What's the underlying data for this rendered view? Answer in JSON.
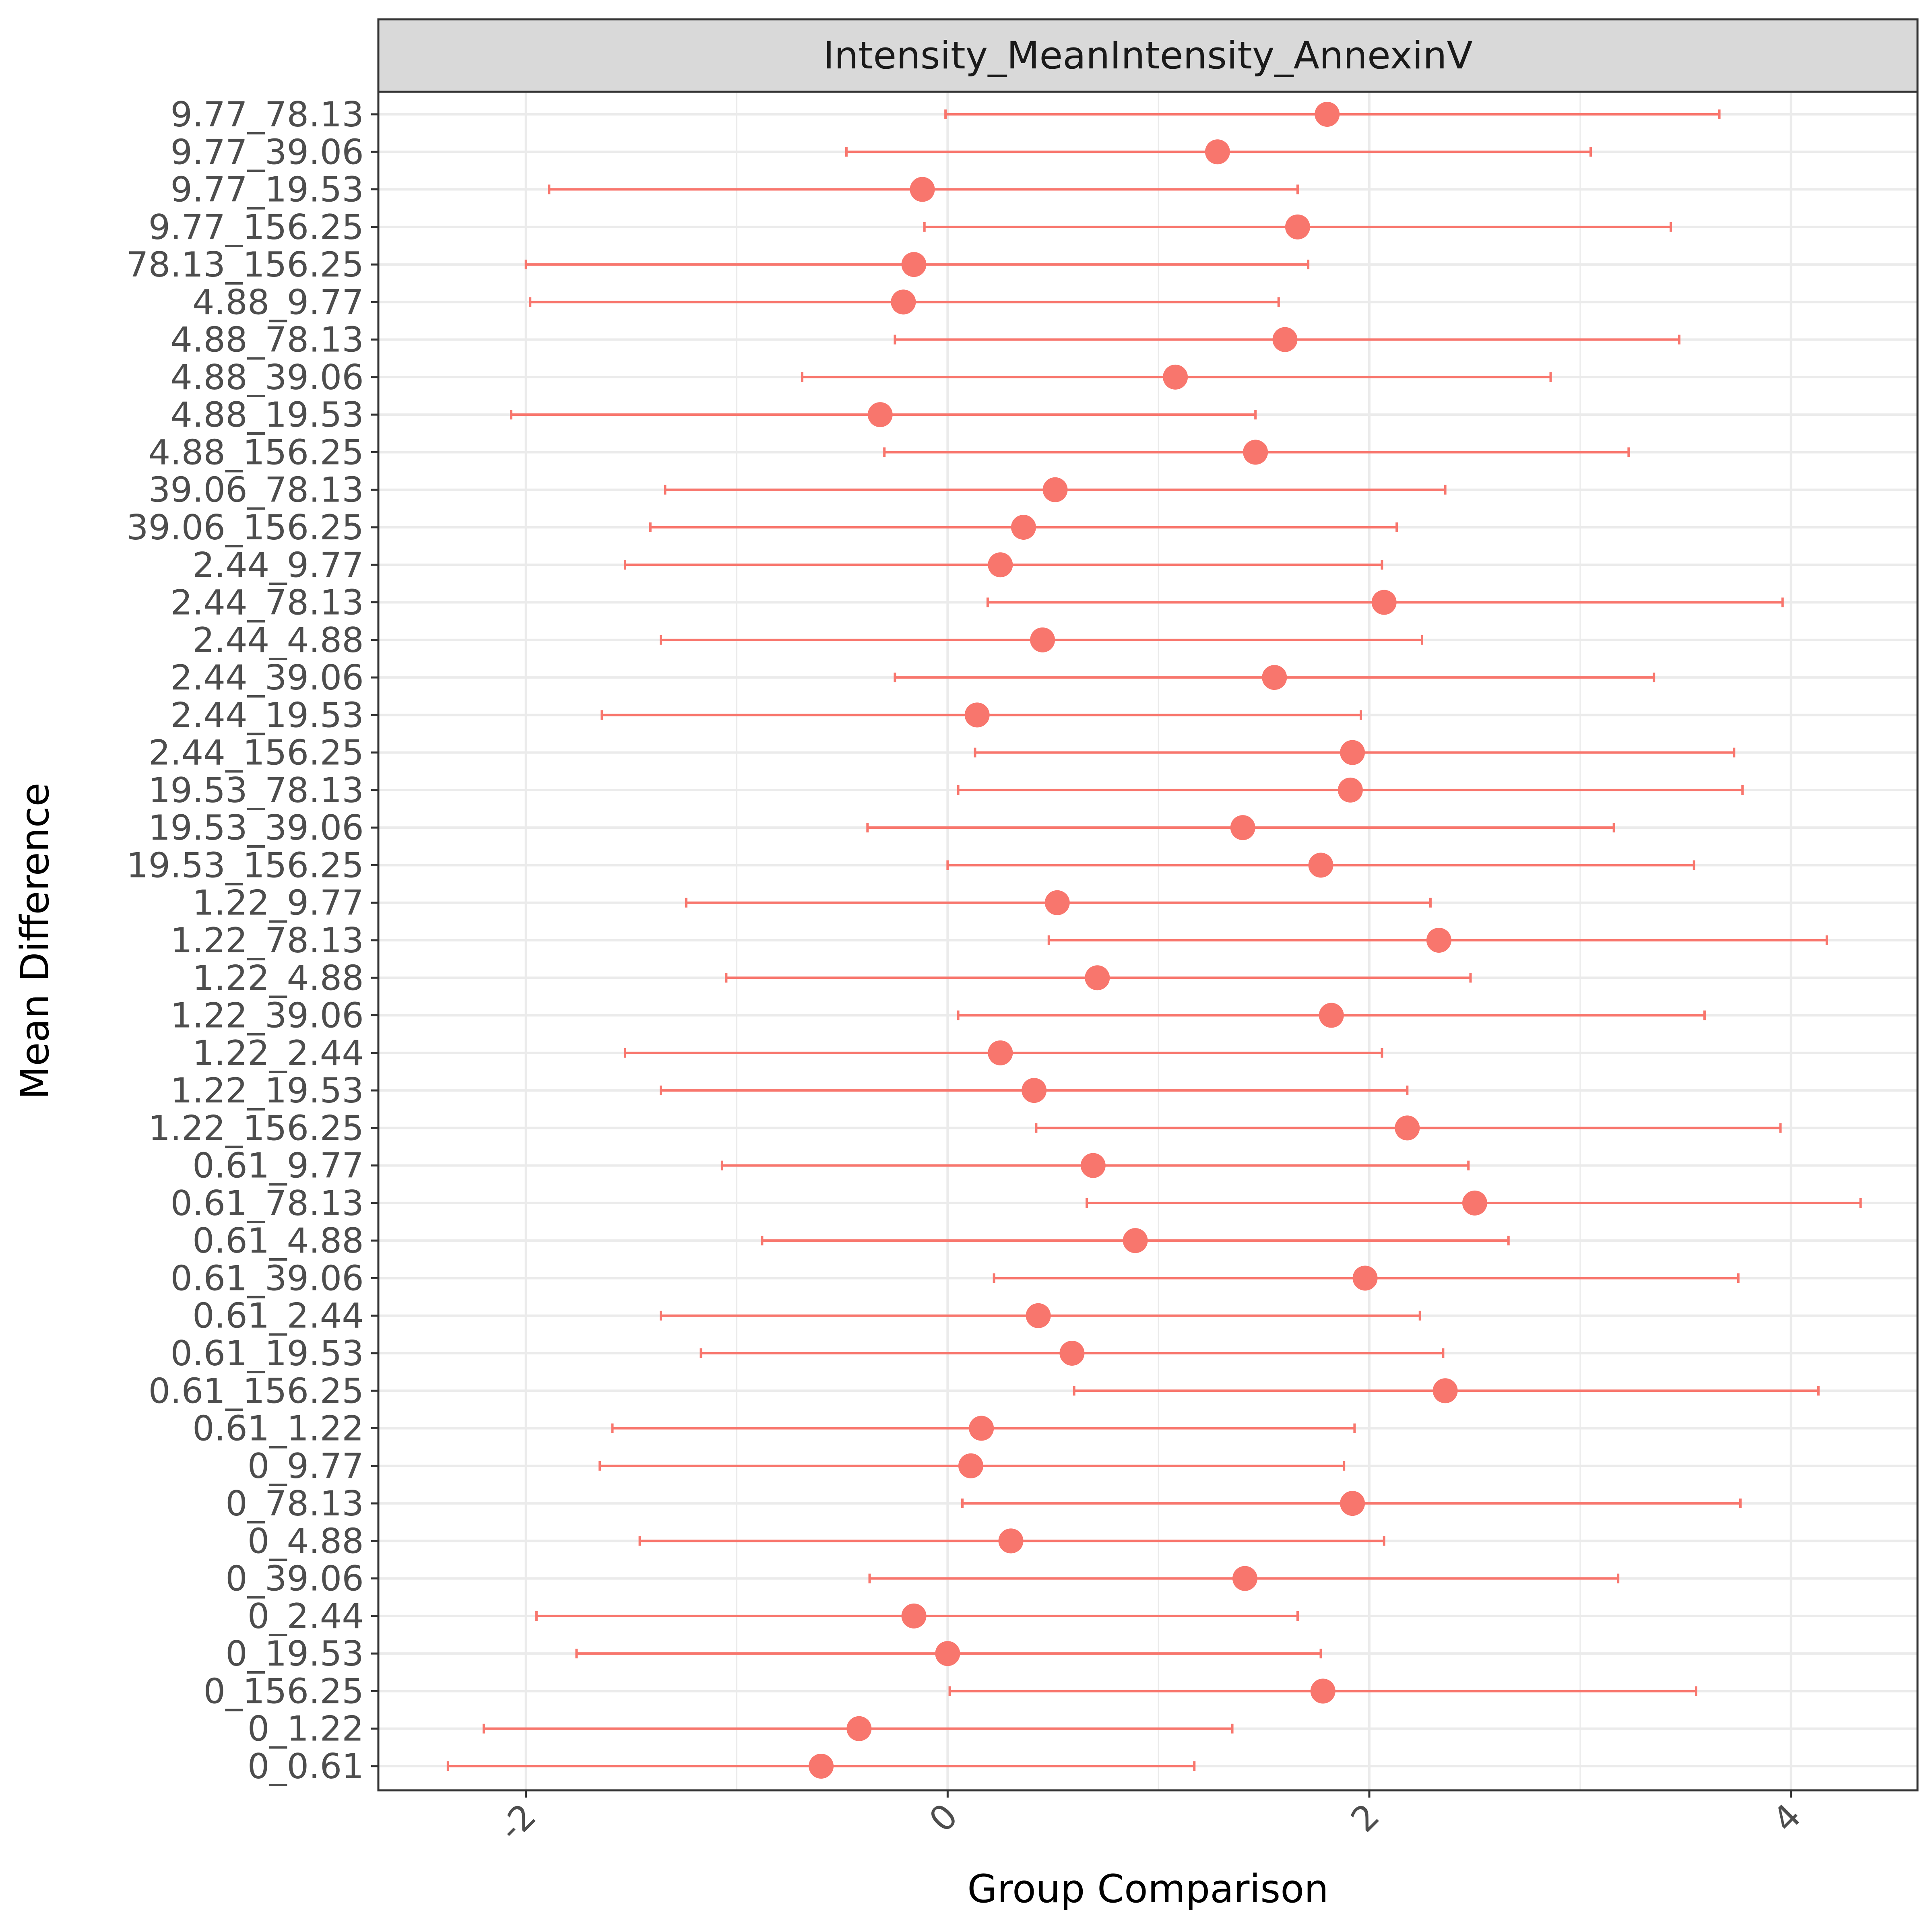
{
  "chart_data": {
    "type": "errorbar",
    "panel_title": "Intensity_MeanIntensity_AnnexinV",
    "xlabel": "Group Comparison",
    "ylabel": "Mean Difference",
    "xlim": [
      -2.7,
      4.6
    ],
    "x_ticks": [
      -2,
      0,
      2,
      4
    ],
    "x_tick_labels": [
      "-2",
      "0",
      "2",
      "4"
    ],
    "grid": true,
    "color": "#F8766D",
    "categories": [
      "0_0.61",
      "0_1.22",
      "0_156.25",
      "0_19.53",
      "0_2.44",
      "0_39.06",
      "0_4.88",
      "0_78.13",
      "0_9.77",
      "0.61_1.22",
      "0.61_156.25",
      "0.61_19.53",
      "0.61_2.44",
      "0.61_39.06",
      "0.61_4.88",
      "0.61_78.13",
      "0.61_9.77",
      "1.22_156.25",
      "1.22_19.53",
      "1.22_2.44",
      "1.22_39.06",
      "1.22_4.88",
      "1.22_78.13",
      "1.22_9.77",
      "19.53_156.25",
      "19.53_39.06",
      "19.53_78.13",
      "2.44_156.25",
      "2.44_19.53",
      "2.44_39.06",
      "2.44_4.88",
      "2.44_78.13",
      "2.44_9.77",
      "39.06_156.25",
      "39.06_78.13",
      "4.88_156.25",
      "4.88_19.53",
      "4.88_39.06",
      "4.88_78.13",
      "4.88_9.77",
      "78.13_156.25",
      "9.77_156.25",
      "9.77_19.53",
      "9.77_39.06",
      "9.77_78.13"
    ],
    "estimate": [
      -0.6,
      -0.42,
      1.78,
      0.0,
      -0.16,
      1.41,
      0.3,
      1.92,
      0.11,
      0.16,
      2.36,
      0.59,
      0.43,
      1.98,
      0.89,
      2.5,
      0.69,
      2.18,
      0.41,
      0.25,
      1.82,
      0.71,
      2.33,
      0.52,
      1.77,
      1.4,
      1.91,
      1.92,
      0.14,
      1.55,
      0.45,
      2.07,
      0.25,
      0.36,
      0.51,
      1.46,
      -0.32,
      1.08,
      1.6,
      -0.21,
      -0.16,
      1.66,
      -0.12,
      1.28,
      1.8
    ],
    "lower": [
      -2.37,
      -2.2,
      0.01,
      -1.76,
      -1.95,
      -0.37,
      -1.46,
      0.07,
      -1.65,
      -1.59,
      0.6,
      -1.17,
      -1.36,
      0.22,
      -0.88,
      0.66,
      -1.07,
      0.42,
      -1.36,
      -1.53,
      0.05,
      -1.05,
      0.48,
      -1.24,
      0.0,
      -0.38,
      0.05,
      0.13,
      -1.64,
      -0.25,
      -1.36,
      0.19,
      -1.53,
      -1.41,
      -1.34,
      -0.3,
      -2.07,
      -0.69,
      -0.25,
      -1.98,
      -2.0,
      -0.11,
      -1.89,
      -0.48,
      -0.01
    ],
    "upper": [
      1.17,
      1.35,
      3.55,
      1.77,
      1.66,
      3.18,
      2.07,
      3.76,
      1.88,
      1.93,
      4.13,
      2.35,
      2.24,
      3.75,
      2.66,
      4.33,
      2.47,
      3.95,
      2.18,
      2.06,
      3.59,
      2.48,
      4.17,
      2.29,
      3.54,
      3.16,
      3.77,
      3.73,
      1.96,
      3.35,
      2.25,
      3.96,
      2.06,
      2.13,
      2.36,
      3.23,
      1.46,
      2.86,
      3.47,
      1.57,
      1.71,
      3.43,
      1.66,
      3.05,
      3.66
    ]
  }
}
